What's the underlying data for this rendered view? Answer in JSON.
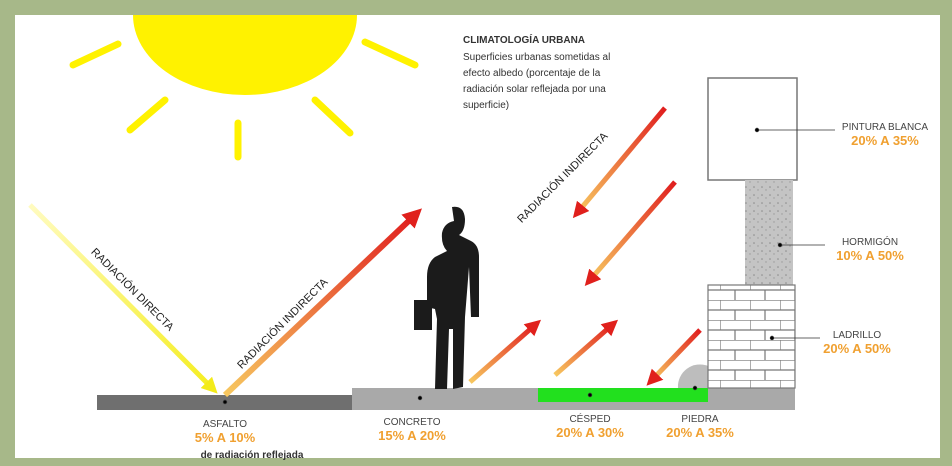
{
  "title": "CLIMATOLOGÍA URBANA",
  "description": [
    "Superficies urbanas sometidas al",
    "efecto albedo (porcentaje de la",
    "radiación solar reflejada por una",
    "superficie)"
  ],
  "radiation_labels": {
    "direct": "RADIACIÓN DIRECTA",
    "indirect_low": "RADIACIÓN INDIRECTA",
    "indirect_high": "RADIACIÓN INDIRECTA"
  },
  "surfaces": [
    {
      "name": "ASFALTO",
      "range": "5% A 10%"
    },
    {
      "name": "CONCRETO",
      "range": "15% A 20%"
    },
    {
      "name": "CÉSPED",
      "range": "20% A 30%"
    },
    {
      "name": "PIEDRA",
      "range": "20% A 35%"
    },
    {
      "name": "PINTURA BLANCA",
      "range": "20% A 35%"
    },
    {
      "name": "HORMIGÓN",
      "range": "10% A 50%"
    },
    {
      "name": "LADRILLO",
      "range": "20% A 50%"
    }
  ],
  "footnote": "de radiación reflejada"
}
